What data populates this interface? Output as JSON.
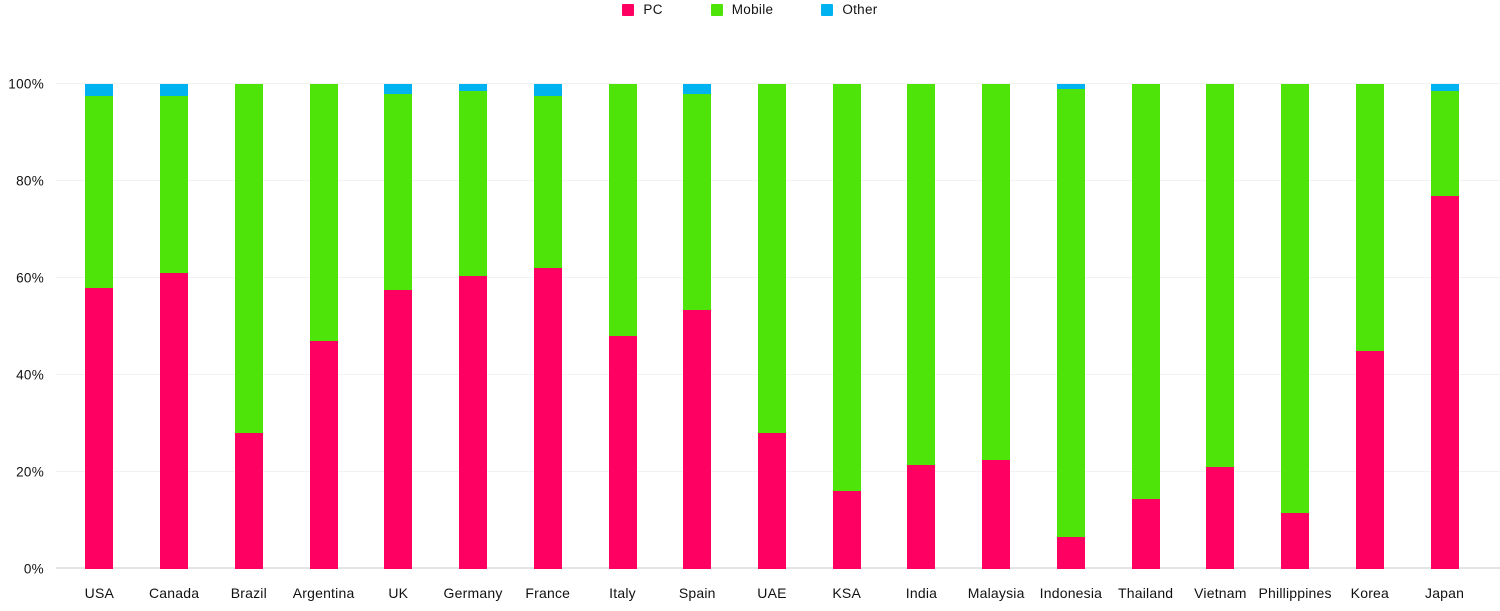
{
  "chart_data": {
    "type": "bar",
    "variant": "stacked-100-percent-column",
    "title": "",
    "xlabel": "",
    "ylabel": "",
    "ylim": [
      0,
      100
    ],
    "grid": true,
    "legend_position": "top-center",
    "stack_total": 100,
    "y_ticks": [
      "0%",
      "20%",
      "40%",
      "60%",
      "80%",
      "100%"
    ],
    "categories": [
      "USA",
      "Canada",
      "Brazil",
      "Argentina",
      "UK",
      "Germany",
      "France",
      "Italy",
      "Spain",
      "UAE",
      "KSA",
      "India",
      "Malaysia",
      "Indonesia",
      "Thailand",
      "Vietnam",
      "Phillippines",
      "Korea",
      "Japan"
    ],
    "series": [
      {
        "name": "PC",
        "color": "#fd0061",
        "values": [
          58,
          61,
          28,
          47,
          57.5,
          60.5,
          62,
          48,
          53.5,
          28,
          16,
          21.5,
          22.5,
          6.5,
          14.5,
          21,
          11.5,
          45,
          77
        ]
      },
      {
        "name": "Mobile",
        "color": "#4ee40a",
        "values": [
          39.5,
          36.5,
          72,
          53,
          40.5,
          38,
          35.5,
          52,
          44.5,
          72,
          84,
          78.5,
          77.5,
          92.5,
          85.5,
          79,
          88.5,
          55,
          21.5
        ]
      },
      {
        "name": "Other",
        "color": "#00b3f0",
        "values": [
          2.5,
          2.5,
          0,
          0,
          2,
          1.5,
          2.5,
          0,
          2,
          0,
          0,
          0,
          0,
          1,
          0,
          0,
          0,
          0,
          1.5
        ]
      }
    ],
    "colors": {
      "gridline": "#f2f2f2",
      "baseline": "#e4e4e4",
      "text": "#111111"
    }
  }
}
